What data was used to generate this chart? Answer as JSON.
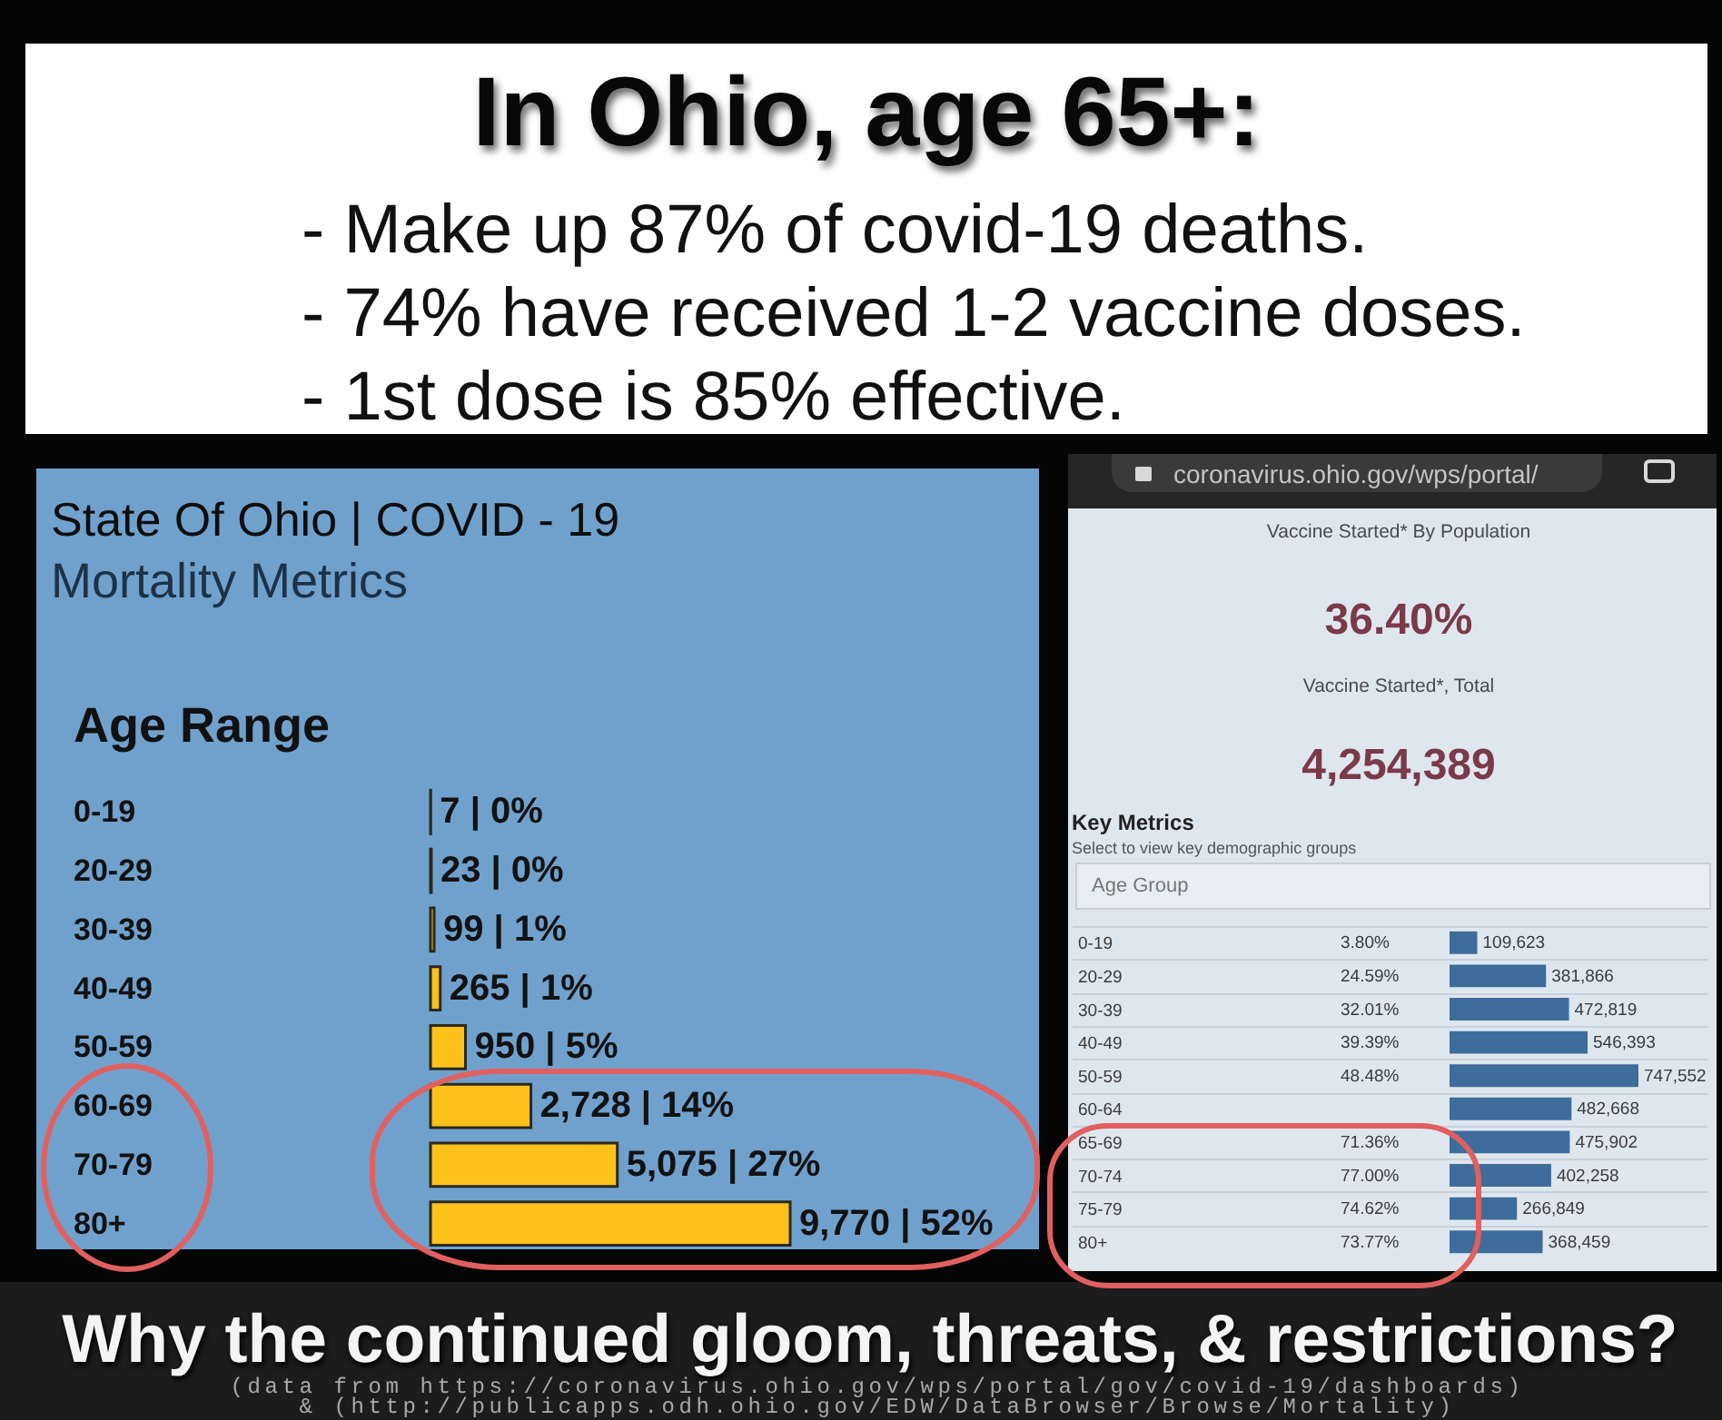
{
  "chart_data": [
    {
      "type": "other",
      "title": "In Ohio, age 65+:",
      "annotations": [
        "- Make up 87% of covid-19 deaths.",
        "- 74% have received 1-2 vaccine doses.",
        "- 1st dose is 85% effective."
      ]
    },
    {
      "type": "bar",
      "orientation": "horizontal",
      "title": "State Of Ohio | COVID - 19",
      "subtitle": "Mortality Metrics",
      "ylabel": "Age Range",
      "categories": [
        "0-19",
        "20-29",
        "30-39",
        "40-49",
        "50-59",
        "60-69",
        "70-79",
        "80+"
      ],
      "values": [
        7,
        23,
        99,
        265,
        950,
        2728,
        5075,
        9770
      ],
      "value_labels": [
        "7 | 0%",
        "23 | 0%",
        "99 | 1%",
        "265 | 1%",
        "950 | 5%",
        "2,728 | 14%",
        "5,075 | 27%",
        "9,770 | 52%"
      ],
      "color": "#fcc21b",
      "tick_labels": "y"
    },
    {
      "type": "other",
      "annotations": [
        "coronavirus.ohio.gov/wps/portal/",
        "Vaccine Started* By Population",
        "36.40%",
        "Vaccine Started*, Total",
        "4,254,389"
      ]
    },
    {
      "type": "bar",
      "orientation": "horizontal",
      "title": "Key Metrics",
      "subtitle": "Select to view key demographic groups",
      "ylabel": "Age Group",
      "categories": [
        "0-19",
        "20-29",
        "30-39",
        "40-49",
        "50-59",
        "60-64",
        "65-69",
        "70-74",
        "75-79",
        "80+"
      ],
      "values": [
        109623,
        381866,
        472819,
        546393,
        747552,
        482668,
        475902,
        402258,
        266849,
        368459
      ],
      "value_labels": [
        "109,623",
        "381,866",
        "472,819",
        "546,393",
        "747,552",
        "482,668",
        "475,902",
        "402,258",
        "266,849",
        "368,459"
      ],
      "color": "#3e6d9c",
      "grid": "y",
      "tick_labels": "y",
      "annotations": [
        "3.80%",
        "24.59%",
        "32.01%",
        "39.39%",
        "48.48%",
        "71.36%",
        "77.00%",
        "74.62%",
        "73.77%"
      ]
    },
    {
      "type": "other",
      "title": "Why the continued gloom, threats, & restrictions?",
      "annotations": [
        "(data from https://coronavirus.ohio.gov/wps/portal/gov/covid-19/dashboards)",
        "& (http://publicapps.odh.ohio.gov/EDW/DataBrowser/Browse/Mortality)"
      ]
    }
  ]
}
